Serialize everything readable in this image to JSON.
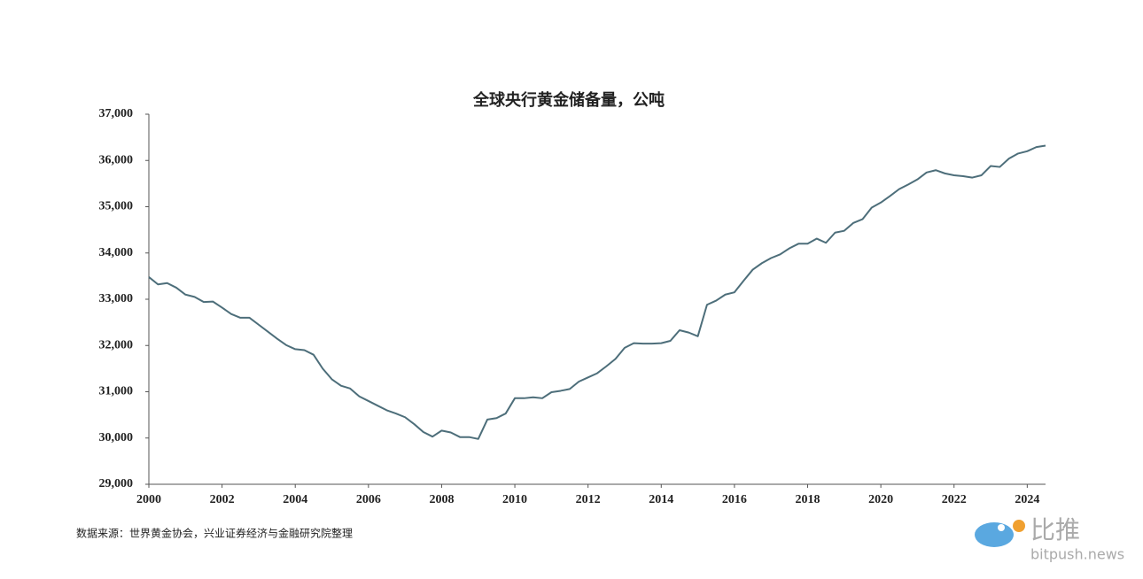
{
  "chart_data": {
    "type": "line",
    "title": "全球央行黄金储备量，公吨",
    "x": [
      2000,
      2000.25,
      2000.5,
      2000.75,
      2001,
      2001.25,
      2001.5,
      2001.75,
      2002,
      2002.25,
      2002.5,
      2002.75,
      2003,
      2003.25,
      2003.5,
      2003.75,
      2004,
      2004.25,
      2004.5,
      2004.75,
      2005,
      2005.25,
      2005.5,
      2005.75,
      2006,
      2006.25,
      2006.5,
      2006.75,
      2007,
      2007.25,
      2007.5,
      2007.75,
      2008,
      2008.25,
      2008.5,
      2008.75,
      2009,
      2009.25,
      2009.5,
      2009.75,
      2010,
      2010.25,
      2010.5,
      2010.75,
      2011,
      2011.25,
      2011.5,
      2011.75,
      2012,
      2012.25,
      2012.5,
      2012.75,
      2013,
      2013.25,
      2013.5,
      2013.75,
      2014,
      2014.25,
      2014.5,
      2014.75,
      2015,
      2015.25,
      2015.5,
      2015.75,
      2016,
      2016.25,
      2016.5,
      2016.75,
      2017,
      2017.25,
      2017.5,
      2017.75,
      2018,
      2018.25,
      2018.5,
      2018.75,
      2019,
      2019.25,
      2019.5,
      2019.75,
      2020,
      2020.25,
      2020.5,
      2020.75,
      2021,
      2021.25,
      2021.5,
      2021.75,
      2022,
      2022.25,
      2022.5,
      2022.75,
      2023,
      2023.25,
      2023.5,
      2023.75,
      2024,
      2024.25,
      2024.5
    ],
    "values": [
      33480,
      33320,
      33350,
      33250,
      33100,
      33050,
      32940,
      32950,
      32820,
      32680,
      32600,
      32600,
      32450,
      32300,
      32150,
      32010,
      31920,
      31900,
      31800,
      31500,
      31270,
      31130,
      31070,
      30900,
      30800,
      30700,
      30600,
      30530,
      30450,
      30300,
      30130,
      30030,
      30160,
      30120,
      30020,
      30020,
      29980,
      30400,
      30430,
      30530,
      30860,
      30860,
      30880,
      30860,
      30990,
      31020,
      31060,
      31220,
      31310,
      31400,
      31550,
      31710,
      31950,
      32050,
      32040,
      32040,
      32050,
      32100,
      32330,
      32280,
      32200,
      32880,
      32970,
      33100,
      33150,
      33400,
      33640,
      33780,
      33890,
      33970,
      34100,
      34200,
      34200,
      34310,
      34220,
      34440,
      34480,
      34650,
      34730,
      34980,
      35090,
      35230,
      35380,
      35480,
      35590,
      35740,
      35790,
      35720,
      35680,
      35660,
      35630,
      35680,
      35880,
      35860,
      36040,
      36150,
      36200,
      36290,
      36320
    ],
    "color": "#4d6e7a",
    "xlim": [
      2000,
      2024.5
    ],
    "xticks": [
      2000,
      2002,
      2004,
      2006,
      2008,
      2010,
      2012,
      2014,
      2016,
      2018,
      2020,
      2022,
      2024
    ],
    "ylim": [
      29000,
      37000
    ],
    "yticks": [
      {
        "value": 29000,
        "label": "29,000"
      },
      {
        "value": 30000,
        "label": "30,000"
      },
      {
        "value": 31000,
        "label": "31,000"
      },
      {
        "value": 32000,
        "label": "32,000"
      },
      {
        "value": 33000,
        "label": "33,000"
      },
      {
        "value": 34000,
        "label": "34,000"
      },
      {
        "value": 35000,
        "label": "35,000"
      },
      {
        "value": 36000,
        "label": "36,000"
      },
      {
        "value": 37000,
        "label": "37,000"
      }
    ],
    "grid": false,
    "source": "数据来源：世界黄金协会，兴业证券经济与金融研究院整理"
  },
  "watermark": {
    "brand": "比推",
    "site": "bitpush.news"
  }
}
